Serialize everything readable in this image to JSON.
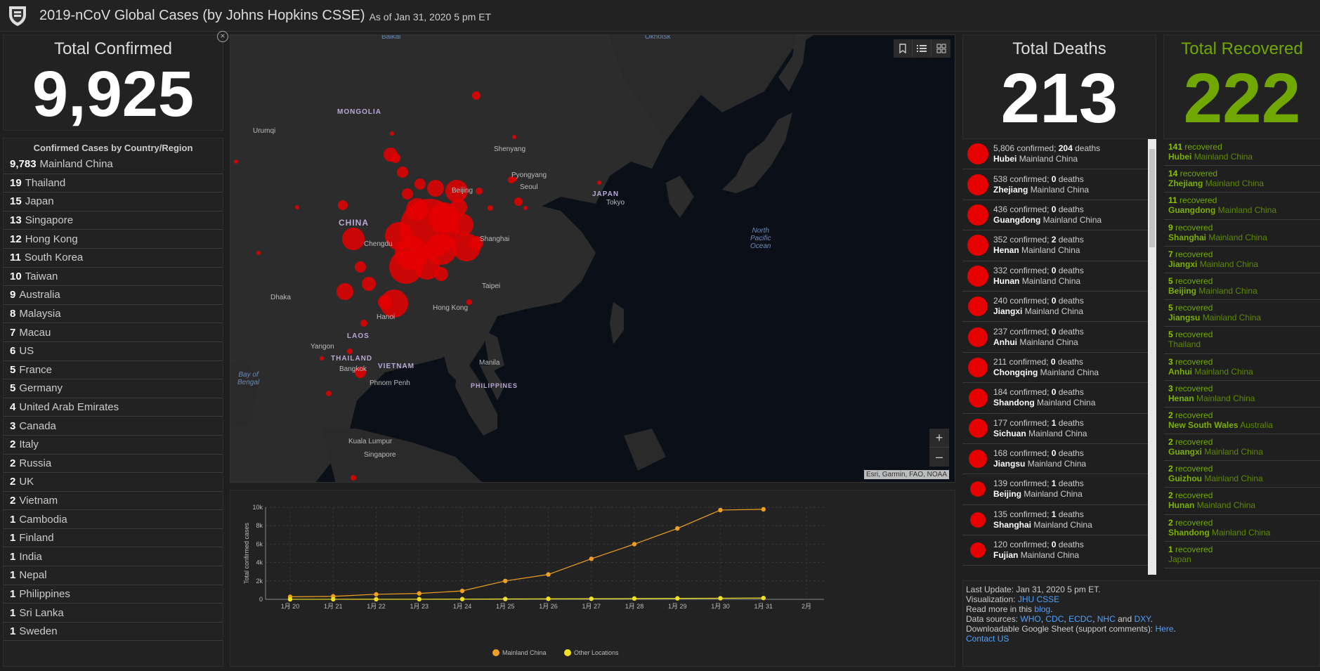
{
  "header": {
    "title": "2019-nCoV Global Cases (by Johns Hopkins CSSE)",
    "subtitle": "As of Jan 31, 2020 5 pm ET"
  },
  "confirmed": {
    "label": "Total Confirmed",
    "value": "9,925"
  },
  "deaths": {
    "label": "Total Deaths",
    "value": "213"
  },
  "recovered": {
    "label": "Total Recovered",
    "value": "222"
  },
  "countries": {
    "title": "Confirmed Cases by Country/Region",
    "items": [
      {
        "count": "9,783",
        "name": "Mainland China"
      },
      {
        "count": "19",
        "name": "Thailand"
      },
      {
        "count": "15",
        "name": "Japan"
      },
      {
        "count": "13",
        "name": "Singapore"
      },
      {
        "count": "12",
        "name": "Hong Kong"
      },
      {
        "count": "11",
        "name": "South Korea"
      },
      {
        "count": "10",
        "name": "Taiwan"
      },
      {
        "count": "9",
        "name": "Australia"
      },
      {
        "count": "8",
        "name": "Malaysia"
      },
      {
        "count": "7",
        "name": "Macau"
      },
      {
        "count": "6",
        "name": "US"
      },
      {
        "count": "5",
        "name": "France"
      },
      {
        "count": "5",
        "name": "Germany"
      },
      {
        "count": "4",
        "name": "United Arab Emirates"
      },
      {
        "count": "3",
        "name": "Canada"
      },
      {
        "count": "2",
        "name": "Italy"
      },
      {
        "count": "2",
        "name": "Russia"
      },
      {
        "count": "2",
        "name": "UK"
      },
      {
        "count": "2",
        "name": "Vietnam"
      },
      {
        "count": "1",
        "name": "Cambodia"
      },
      {
        "count": "1",
        "name": "Finland"
      },
      {
        "count": "1",
        "name": "India"
      },
      {
        "count": "1",
        "name": "Nepal"
      },
      {
        "count": "1",
        "name": "Philippines"
      },
      {
        "count": "1",
        "name": "Sri Lanka"
      },
      {
        "count": "1",
        "name": "Sweden"
      }
    ]
  },
  "map": {
    "labels": [
      "Baikal",
      "Okhotsk",
      "MONGOLIA",
      "Urumqi",
      "CHINA",
      "Chengdu",
      "Shenyang",
      "Beijing",
      "Pyongyang",
      "Seoul",
      "JAPAN",
      "Tokyo",
      "Shanghai",
      "Taipei",
      "Hong Kong",
      "Dhaka",
      "Hanoi",
      "LAOS",
      "Yangon",
      "THAILAND",
      "VIETNAM",
      "Bangkok",
      "Phnom Penh",
      "Manila",
      "PHILIPPINES",
      "Kuala Lumpur",
      "Singapore"
    ],
    "ocean_pacific": [
      "North",
      "Pacific",
      "Ocean"
    ],
    "ocean_bengal": [
      "Bay of",
      "Bengal"
    ],
    "attribution": "Esri, Garmin, FAO, NOAA",
    "zoom_in": "+",
    "zoom_out": "–"
  },
  "chart_data": {
    "type": "line",
    "categories": [
      "1月 20",
      "1月 21",
      "1月 22",
      "1月 23",
      "1月 24",
      "1月 25",
      "1月 26",
      "1月 27",
      "1月 28",
      "1月 29",
      "1月 30",
      "1月 31",
      "2月"
    ],
    "series": [
      {
        "name": "Mainland China",
        "color": "#f0a020",
        "values": [
          278,
          326,
          547,
          639,
          916,
          2000,
          2700,
          4400,
          6000,
          7700,
          9700,
          9783,
          null
        ]
      },
      {
        "name": "Other Locations",
        "color": "#f0e020",
        "values": [
          4,
          6,
          8,
          14,
          25,
          40,
          57,
          64,
          87,
          105,
          118,
          142,
          null
        ]
      }
    ],
    "ylabel": "Total confirmed cases",
    "y_ticks": [
      "0",
      "2k",
      "4k",
      "6k",
      "8k",
      "10k"
    ],
    "ylim": [
      0,
      10000
    ],
    "grid": true,
    "legend": "bottom"
  },
  "death_items": [
    {
      "confirmed": "5,806",
      "deaths": "204",
      "place": "Hubei",
      "region": "Mainland China",
      "size": 30
    },
    {
      "confirmed": "538",
      "deaths": "0",
      "place": "Zhejiang",
      "region": "Mainland China",
      "size": 30
    },
    {
      "confirmed": "436",
      "deaths": "0",
      "place": "Guangdong",
      "region": "Mainland China",
      "size": 30
    },
    {
      "confirmed": "352",
      "deaths": "2",
      "place": "Henan",
      "region": "Mainland China",
      "size": 30
    },
    {
      "confirmed": "332",
      "deaths": "0",
      "place": "Hunan",
      "region": "Mainland China",
      "size": 30
    },
    {
      "confirmed": "240",
      "deaths": "0",
      "place": "Jiangxi",
      "region": "Mainland China",
      "size": 28
    },
    {
      "confirmed": "237",
      "deaths": "0",
      "place": "Anhui",
      "region": "Mainland China",
      "size": 28
    },
    {
      "confirmed": "211",
      "deaths": "0",
      "place": "Chongqing",
      "region": "Mainland China",
      "size": 28
    },
    {
      "confirmed": "184",
      "deaths": "0",
      "place": "Shandong",
      "region": "Mainland China",
      "size": 27
    },
    {
      "confirmed": "177",
      "deaths": "1",
      "place": "Sichuan",
      "region": "Mainland China",
      "size": 27
    },
    {
      "confirmed": "168",
      "deaths": "0",
      "place": "Jiangsu",
      "region": "Mainland China",
      "size": 26
    },
    {
      "confirmed": "139",
      "deaths": "1",
      "place": "Beijing",
      "region": "Mainland China",
      "size": 22
    },
    {
      "confirmed": "135",
      "deaths": "1",
      "place": "Shanghai",
      "region": "Mainland China",
      "size": 22
    },
    {
      "confirmed": "120",
      "deaths": "0",
      "place": "Fujian",
      "region": "Mainland China",
      "size": 22
    }
  ],
  "death_templates": {
    "confirmed_word": "confirmed;",
    "deaths_word": "deaths"
  },
  "recovered_items": [
    {
      "count": "141",
      "place": "Hubei",
      "region": "Mainland China"
    },
    {
      "count": "14",
      "place": "Zhejiang",
      "region": "Mainland China"
    },
    {
      "count": "11",
      "place": "Guangdong",
      "region": "Mainland China"
    },
    {
      "count": "9",
      "place": "Shanghai",
      "region": "Mainland China"
    },
    {
      "count": "7",
      "place": "Jiangxi",
      "region": "Mainland China"
    },
    {
      "count": "5",
      "place": "Beijing",
      "region": "Mainland China"
    },
    {
      "count": "5",
      "place": "Jiangsu",
      "region": "Mainland China"
    },
    {
      "count": "5",
      "place": "",
      "region": "Thailand"
    },
    {
      "count": "3",
      "place": "Anhui",
      "region": "Mainland China"
    },
    {
      "count": "3",
      "place": "Henan",
      "region": "Mainland China"
    },
    {
      "count": "2",
      "place": "New South Wales",
      "region": "Australia"
    },
    {
      "count": "2",
      "place": "Guangxi",
      "region": "Mainland China"
    },
    {
      "count": "2",
      "place": "Guizhou",
      "region": "Mainland China"
    },
    {
      "count": "2",
      "place": "Hunan",
      "region": "Mainland China"
    },
    {
      "count": "2",
      "place": "Shandong",
      "region": "Mainland China"
    },
    {
      "count": "1",
      "place": "",
      "region": "Japan"
    }
  ],
  "recovered_word": "recovered",
  "info": {
    "last_update": "Last Update: Jan 31, 2020 5 pm ET.",
    "vis_prefix": "Visualization:",
    "vis_link": "JHU CSSE",
    "read_prefix": "Read more in this",
    "read_link": "blog",
    "sources_prefix": "Data sources:",
    "sources": [
      "WHO",
      "CDC",
      "ECDC",
      "NHC"
    ],
    "sources_and": "and",
    "sources_last": "DXY",
    "sheet_prefix": "Downloadable Google Sheet (support comments):",
    "sheet_link": "Here",
    "contact": "Contact US"
  },
  "colors": {
    "confirmed": "#ffffff",
    "deaths": "#ffffff",
    "recovered": "#70a800",
    "case_dot": "#e60000",
    "link": "#4ea2ff"
  }
}
